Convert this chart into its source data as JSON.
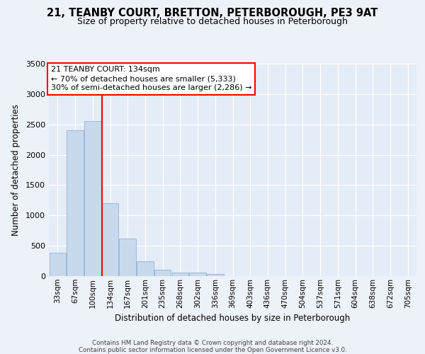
{
  "title1": "21, TEANBY COURT, BRETTON, PETERBOROUGH, PE3 9AT",
  "title2": "Size of property relative to detached houses in Peterborough",
  "xlabel": "Distribution of detached houses by size in Peterborough",
  "ylabel": "Number of detached properties",
  "categories": [
    "33sqm",
    "67sqm",
    "100sqm",
    "134sqm",
    "167sqm",
    "201sqm",
    "235sqm",
    "268sqm",
    "302sqm",
    "336sqm",
    "369sqm",
    "403sqm",
    "436sqm",
    "470sqm",
    "504sqm",
    "537sqm",
    "571sqm",
    "604sqm",
    "638sqm",
    "672sqm",
    "705sqm"
  ],
  "values": [
    390,
    2400,
    2560,
    1200,
    620,
    240,
    100,
    60,
    55,
    40,
    0,
    0,
    0,
    0,
    0,
    0,
    0,
    0,
    0,
    0,
    0
  ],
  "bar_color": "#c8d9ee",
  "bar_edge_color": "#8ab4d8",
  "highlight_index": 3,
  "annotation_line1": "21 TEANBY COURT: 134sqm",
  "annotation_line2": "← 70% of detached houses are smaller (5,333)",
  "annotation_line3": "30% of semi-detached houses are larger (2,286) →",
  "annotation_box_facecolor": "white",
  "annotation_box_edge_color": "red",
  "highlight_line_color": "red",
  "ylim": [
    0,
    3500
  ],
  "yticks": [
    0,
    500,
    1000,
    1500,
    2000,
    2500,
    3000,
    3500
  ],
  "footnote_line1": "Contains HM Land Registry data © Crown copyright and database right 2024.",
  "footnote_line2": "Contains public sector information licensed under the Open Government Licence v3.0.",
  "bg_color": "#edf1f8",
  "plot_bg_color": "#e4ecf7",
  "grid_color": "white",
  "title1_fontsize": 10.5,
  "title2_fontsize": 9,
  "tick_fontsize": 7.5,
  "ylabel_fontsize": 8.5,
  "xlabel_fontsize": 8.5,
  "annot_fontsize": 8
}
